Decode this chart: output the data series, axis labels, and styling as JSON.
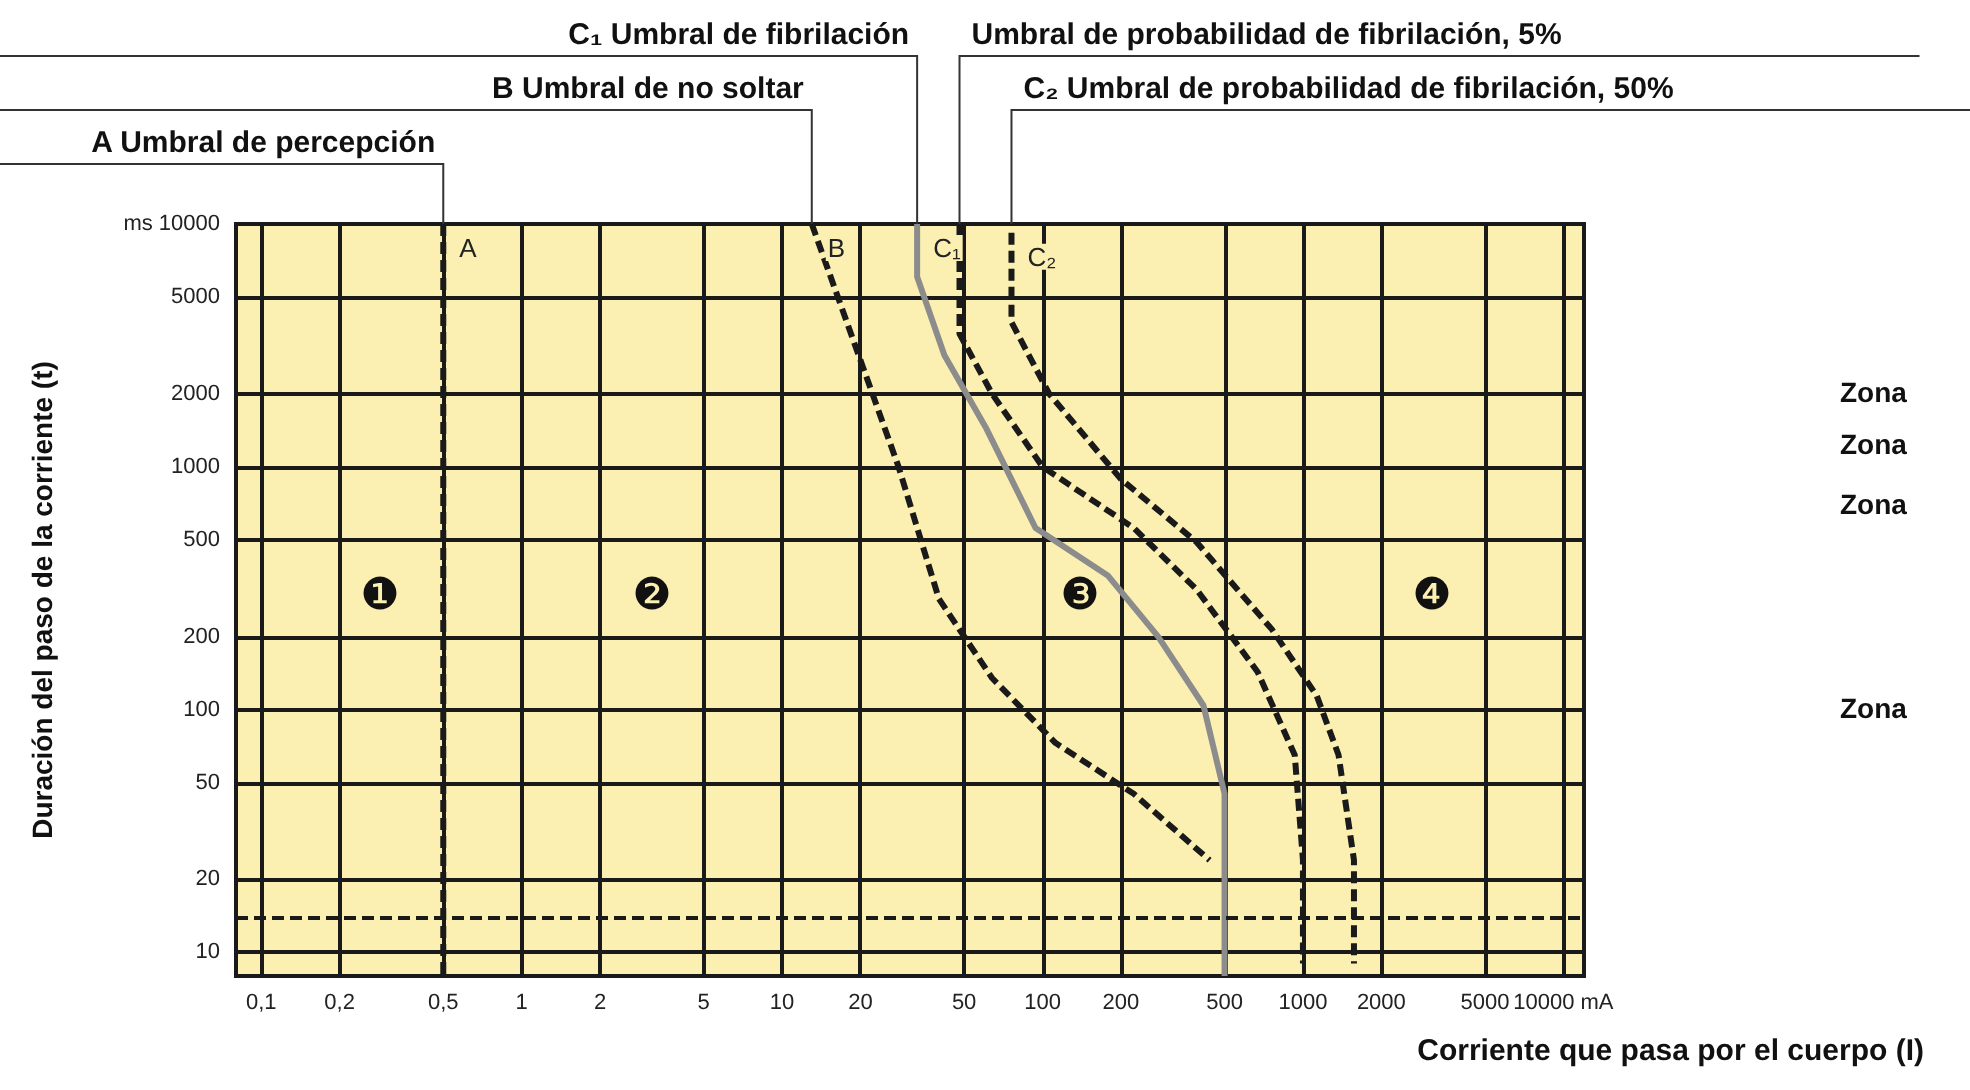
{
  "chart_data": {
    "type": "line",
    "xlabel": "Corriente que pasa por el cuerpo (I)",
    "ylabel": "Duración del paso de la corriente (t)",
    "log": "xy",
    "grid": true,
    "marker": "none",
    "xlim": [
      0.08,
      12000
    ],
    "ylim": [
      8,
      10000
    ],
    "xticks": [
      {
        "value": 0.1,
        "label": "0,1"
      },
      {
        "value": 0.2,
        "label": "0,2"
      },
      {
        "value": 0.5,
        "label": "0,5"
      },
      1,
      2,
      5,
      10,
      20,
      50,
      100,
      200,
      500,
      1000,
      2000,
      5000,
      {
        "value": 10000,
        "label": "10000 mA"
      }
    ],
    "yticks": [
      10,
      20,
      50,
      100,
      200,
      500,
      1000,
      2000,
      5000,
      {
        "value": 10000,
        "label": "ms 10000"
      }
    ],
    "series": [
      {
        "name": "A",
        "color": "#1a1a1a",
        "line_style": "dashed",
        "x": [
          0.5,
          0.5
        ],
        "values": [
          10000,
          8
        ]
      },
      {
        "name": "B",
        "color": "#1a1a1a",
        "line_style": "dashed",
        "x": [
          13,
          28,
          40,
          64,
          112,
          224,
          438
        ],
        "values": [
          10000,
          1000,
          286,
          135,
          73,
          45,
          24
        ]
      },
      {
        "name": "C₁",
        "color": "#8c8c8c",
        "line_style": "solid",
        "x": [
          33,
          33,
          42,
          61,
          94,
          178,
          278,
          415,
          500,
          500
        ],
        "values": [
          10000,
          6070,
          2880,
          1430,
          560,
          357,
          200,
          104,
          45,
          8
        ]
      },
      {
        "color": "#1a1a1a",
        "line_style": "dashed",
        "x": [
          48,
          48,
          64,
          100,
          224,
          390,
          670,
          930,
          1000,
          1000
        ],
        "values": [
          10000,
          3530,
          2000,
          1000,
          560,
          313,
          143,
          65,
          24,
          9
        ]
      },
      {
        "name": "C₂",
        "color": "#1a1a1a",
        "line_style": "dashed",
        "x": [
          76,
          76,
          106,
          200,
          390,
          760,
          1130,
          1370,
          1570,
          1570
        ],
        "values": [
          9200,
          3940,
          2000,
          890,
          490,
          214,
          114,
          65,
          24,
          9
        ]
      }
    ],
    "ref_lines": [
      {
        "axis": "y",
        "value": 14,
        "color": "#1a1a1a",
        "line_style": "dashed"
      }
    ],
    "annotations": [
      {
        "text": "C₁ Umbral de fibrilación",
        "x": 33,
        "y": 10000
      },
      {
        "text": "Umbral de probabilidad de fibrilación, 5%",
        "x": 48,
        "y": 10000
      },
      {
        "text": "B Umbral de no soltar",
        "x": 13,
        "y": 10000
      },
      {
        "text": "C₂ Umbral de probabilidad de fibrilación, 50%",
        "x": 76,
        "y": 10000
      },
      {
        "text": "A Umbral de percepción",
        "x": 0.5,
        "y": 10000
      },
      "❶",
      "❷",
      "❸",
      "❹",
      "Zona",
      "Zona",
      "Zona",
      "Zona"
    ]
  }
}
